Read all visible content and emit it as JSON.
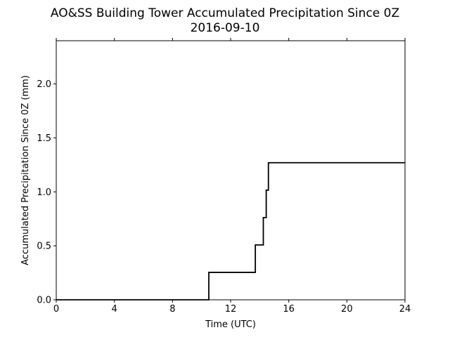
{
  "chart_data": {
    "type": "line",
    "title": "AO&SS Building Tower Accumulated Precipitation Since 0Z",
    "subtitle": "2016-09-10",
    "xlabel": "Time (UTC)",
    "ylabel": "Accumulated Precipitation Since 0Z (mm)",
    "xlim": [
      0,
      24
    ],
    "ylim": [
      0,
      2.4
    ],
    "xticks": [
      0,
      4,
      8,
      12,
      16,
      20,
      24
    ],
    "xtick_labels": [
      "0",
      "4",
      "8",
      "12",
      "16",
      "20",
      "24"
    ],
    "yticks": [
      0.0,
      0.5,
      1.0,
      1.5,
      2.0
    ],
    "ytick_labels": [
      "0.0",
      "0.5",
      "1.0",
      "1.5",
      "2.0"
    ],
    "grid": false,
    "series": [
      {
        "color": "#000000",
        "step": true,
        "x": [
          0,
          10.5,
          13.7,
          14.25,
          14.45,
          14.6,
          24
        ],
        "y": [
          0.0,
          0.254,
          0.508,
          0.762,
          1.016,
          1.27,
          1.27
        ]
      }
    ]
  }
}
